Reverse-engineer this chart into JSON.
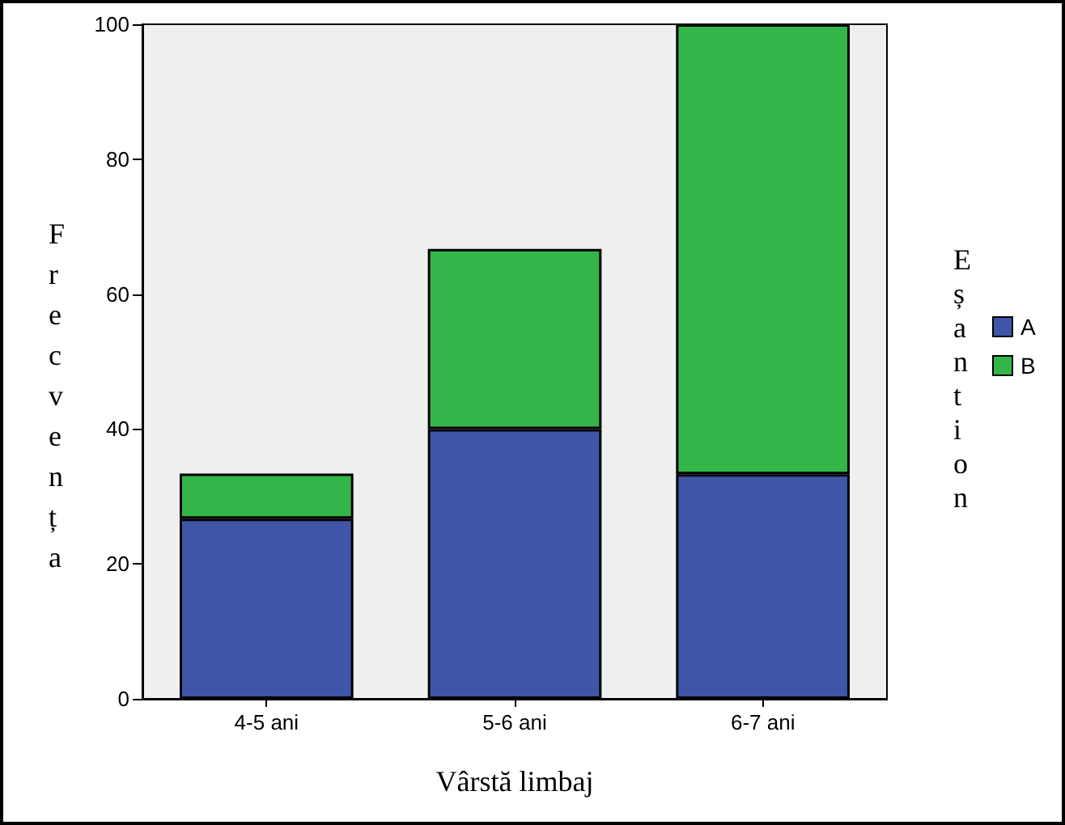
{
  "chart_data": {
    "type": "bar",
    "stacked": true,
    "xlabel": "Vârstă limbaj",
    "ylabel": "Frecvența",
    "legend_title": "Eșantion",
    "categories": [
      "4-5 ani",
      "5-6 ani",
      "6-7 ani"
    ],
    "series": [
      {
        "name": "A",
        "color": "#3f55a8",
        "values": [
          26.7,
          40,
          33.3
        ]
      },
      {
        "name": "B",
        "color": "#33b54a",
        "values": [
          6.7,
          26.7,
          66.7
        ]
      }
    ],
    "ylim": [
      0,
      100
    ],
    "yticks": [
      0,
      20,
      40,
      60,
      80,
      100
    ],
    "grid": false,
    "legend": "right"
  }
}
